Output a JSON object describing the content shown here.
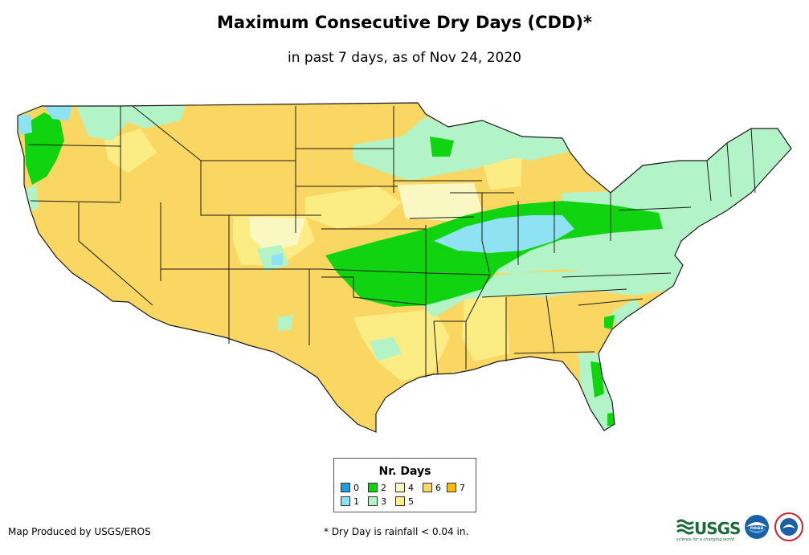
{
  "title": "Maximum Consecutive Dry Days (CDD)*",
  "subtitle": "in past 7 days, as of Nov 24, 2020",
  "legend": {
    "title": "Nr. Days",
    "items": [
      {
        "label": "0",
        "color": "#1a9fdf"
      },
      {
        "label": "1",
        "color": "#8ee2f2"
      },
      {
        "label": "2",
        "color": "#11d411"
      },
      {
        "label": "3",
        "color": "#b2f4c8"
      },
      {
        "label": "4",
        "color": "#f9f8c2"
      },
      {
        "label": "5",
        "color": "#fbec84"
      },
      {
        "label": "6",
        "color": "#fad762"
      },
      {
        "label": "7",
        "color": "#f5bf00"
      }
    ]
  },
  "credit": "Map Produced by USGS/EROS",
  "footnote": "* Dry Day is rainfall < 0.04 in.",
  "logos": {
    "usgs": "USGS",
    "usgs_tagline": "science for a changing world",
    "noaa": "noaa"
  },
  "colors": {
    "border": "#1a1a1a",
    "usgs_green": "#1e6b3a",
    "noaa_blue": "#1b5fa8",
    "nws_red": "#c8202f"
  }
}
